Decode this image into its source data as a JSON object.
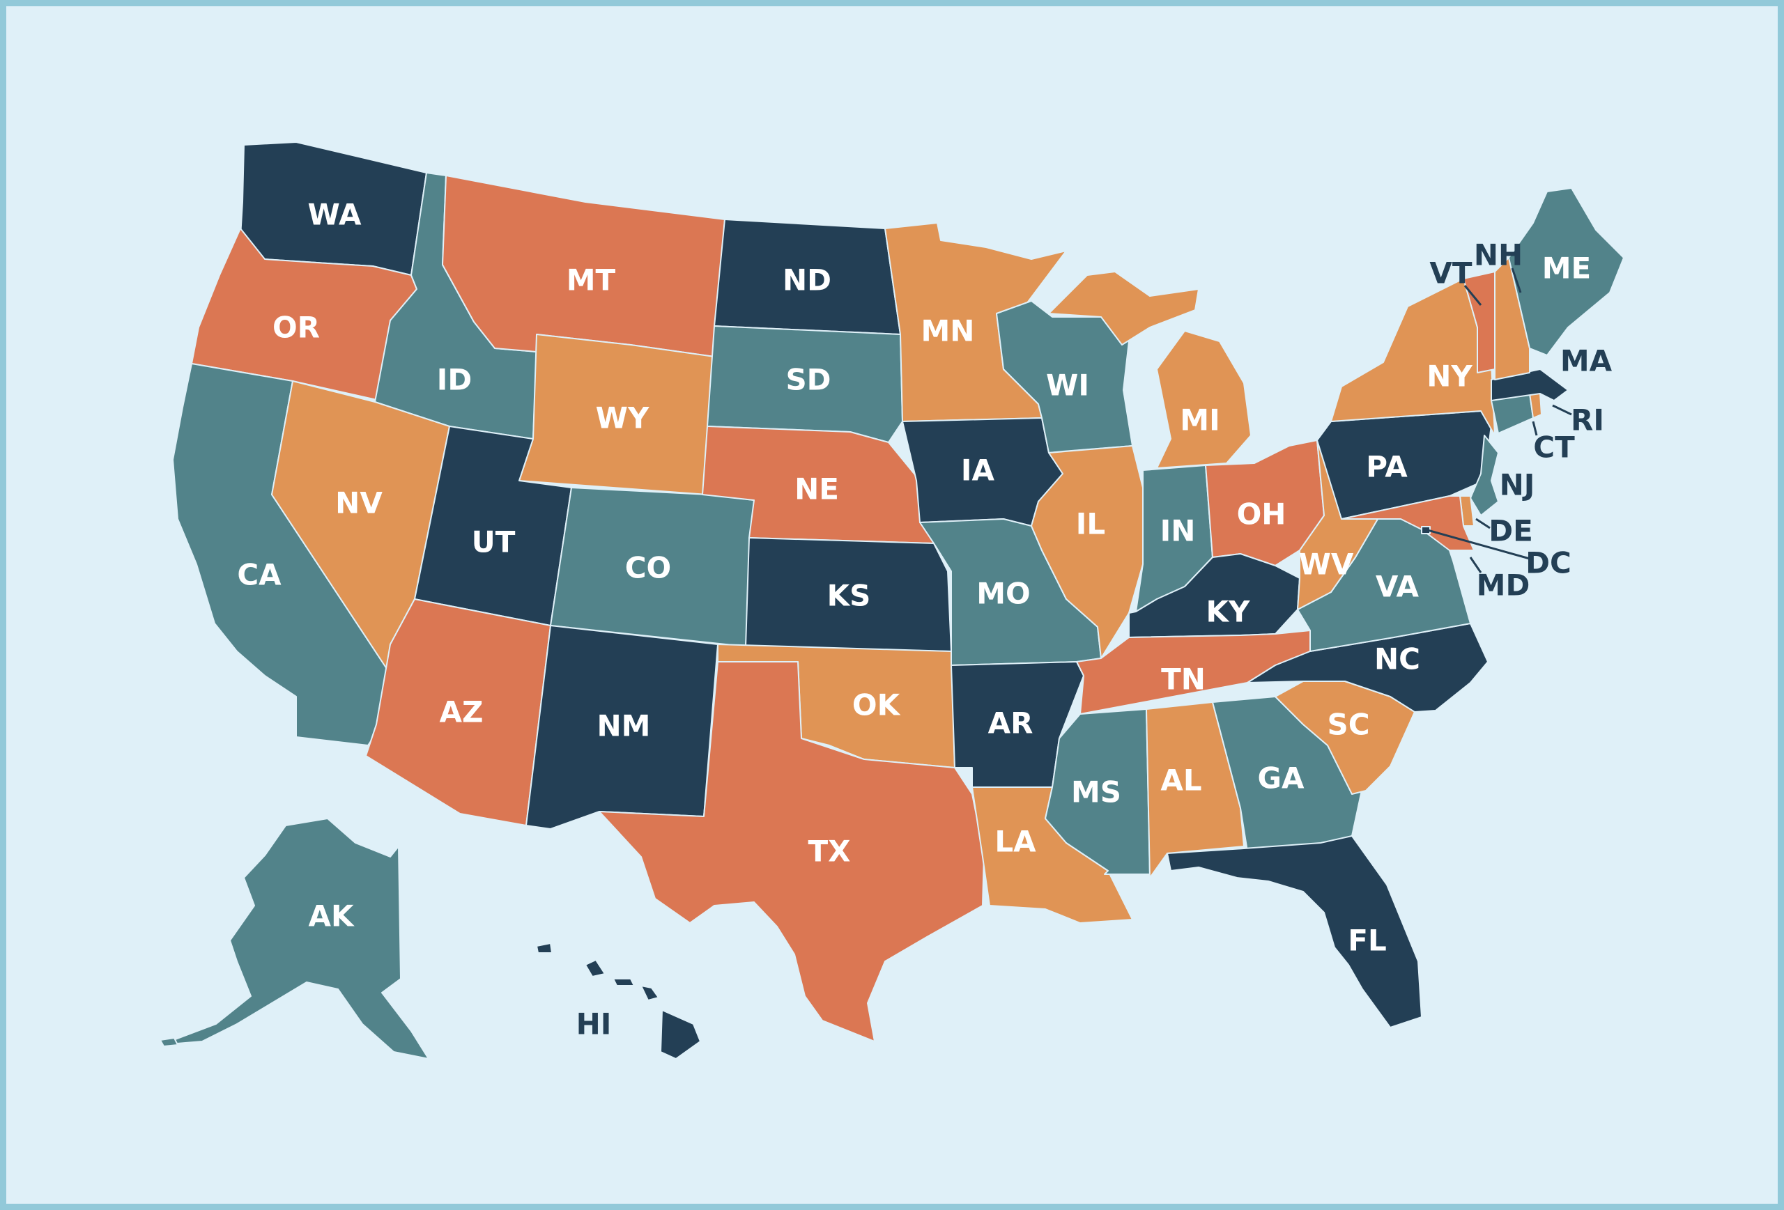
{
  "colors": {
    "background": "#dff0f8",
    "border": "#92c9d9",
    "navy": "#233f55",
    "teal": "#52838a",
    "coral": "#db7753",
    "orange": "#e09455",
    "label_light": "#ffffff",
    "label_dark": "#233f55"
  },
  "states": {
    "WA": {
      "label": "WA",
      "color": "navy"
    },
    "OR": {
      "label": "OR",
      "color": "coral"
    },
    "CA": {
      "label": "CA",
      "color": "teal"
    },
    "ID": {
      "label": "ID",
      "color": "teal"
    },
    "NV": {
      "label": "NV",
      "color": "orange"
    },
    "MT": {
      "label": "MT",
      "color": "coral"
    },
    "WY": {
      "label": "WY",
      "color": "orange"
    },
    "UT": {
      "label": "UT",
      "color": "navy"
    },
    "AZ": {
      "label": "AZ",
      "color": "coral"
    },
    "CO": {
      "label": "CO",
      "color": "teal"
    },
    "NM": {
      "label": "NM",
      "color": "navy"
    },
    "ND": {
      "label": "ND",
      "color": "navy"
    },
    "SD": {
      "label": "SD",
      "color": "teal"
    },
    "NE": {
      "label": "NE",
      "color": "coral"
    },
    "KS": {
      "label": "KS",
      "color": "navy"
    },
    "OK": {
      "label": "OK",
      "color": "orange"
    },
    "TX": {
      "label": "TX",
      "color": "coral"
    },
    "MN": {
      "label": "MN",
      "color": "orange"
    },
    "IA": {
      "label": "IA",
      "color": "navy"
    },
    "MO": {
      "label": "MO",
      "color": "teal"
    },
    "AR": {
      "label": "AR",
      "color": "navy"
    },
    "LA": {
      "label": "LA",
      "color": "orange"
    },
    "WI": {
      "label": "WI",
      "color": "teal"
    },
    "IL": {
      "label": "IL",
      "color": "orange"
    },
    "MI": {
      "label": "MI",
      "color": "orange"
    },
    "IN": {
      "label": "IN",
      "color": "teal"
    },
    "OH": {
      "label": "OH",
      "color": "coral"
    },
    "KY": {
      "label": "KY",
      "color": "navy"
    },
    "TN": {
      "label": "TN",
      "color": "coral"
    },
    "MS": {
      "label": "MS",
      "color": "teal"
    },
    "AL": {
      "label": "AL",
      "color": "orange"
    },
    "GA": {
      "label": "GA",
      "color": "teal"
    },
    "FL": {
      "label": "FL",
      "color": "navy"
    },
    "SC": {
      "label": "SC",
      "color": "orange"
    },
    "NC": {
      "label": "NC",
      "color": "navy"
    },
    "VA": {
      "label": "VA",
      "color": "teal"
    },
    "WV": {
      "label": "WV",
      "color": "orange"
    },
    "PA": {
      "label": "PA",
      "color": "navy"
    },
    "NY": {
      "label": "NY",
      "color": "orange"
    },
    "NJ": {
      "label": "NJ",
      "color": "teal"
    },
    "DE": {
      "label": "DE",
      "color": "orange"
    },
    "MD": {
      "label": "MD",
      "color": "coral"
    },
    "DC": {
      "label": "DC",
      "color": "navy"
    },
    "CT": {
      "label": "CT",
      "color": "teal"
    },
    "RI": {
      "label": "RI",
      "color": "orange"
    },
    "MA": {
      "label": "MA",
      "color": "navy"
    },
    "VT": {
      "label": "VT",
      "color": "coral"
    },
    "NH": {
      "label": "NH",
      "color": "orange"
    },
    "ME": {
      "label": "ME",
      "color": "teal"
    },
    "AK": {
      "label": "AK",
      "color": "teal"
    },
    "HI": {
      "label": "HI",
      "color": "navy"
    }
  }
}
